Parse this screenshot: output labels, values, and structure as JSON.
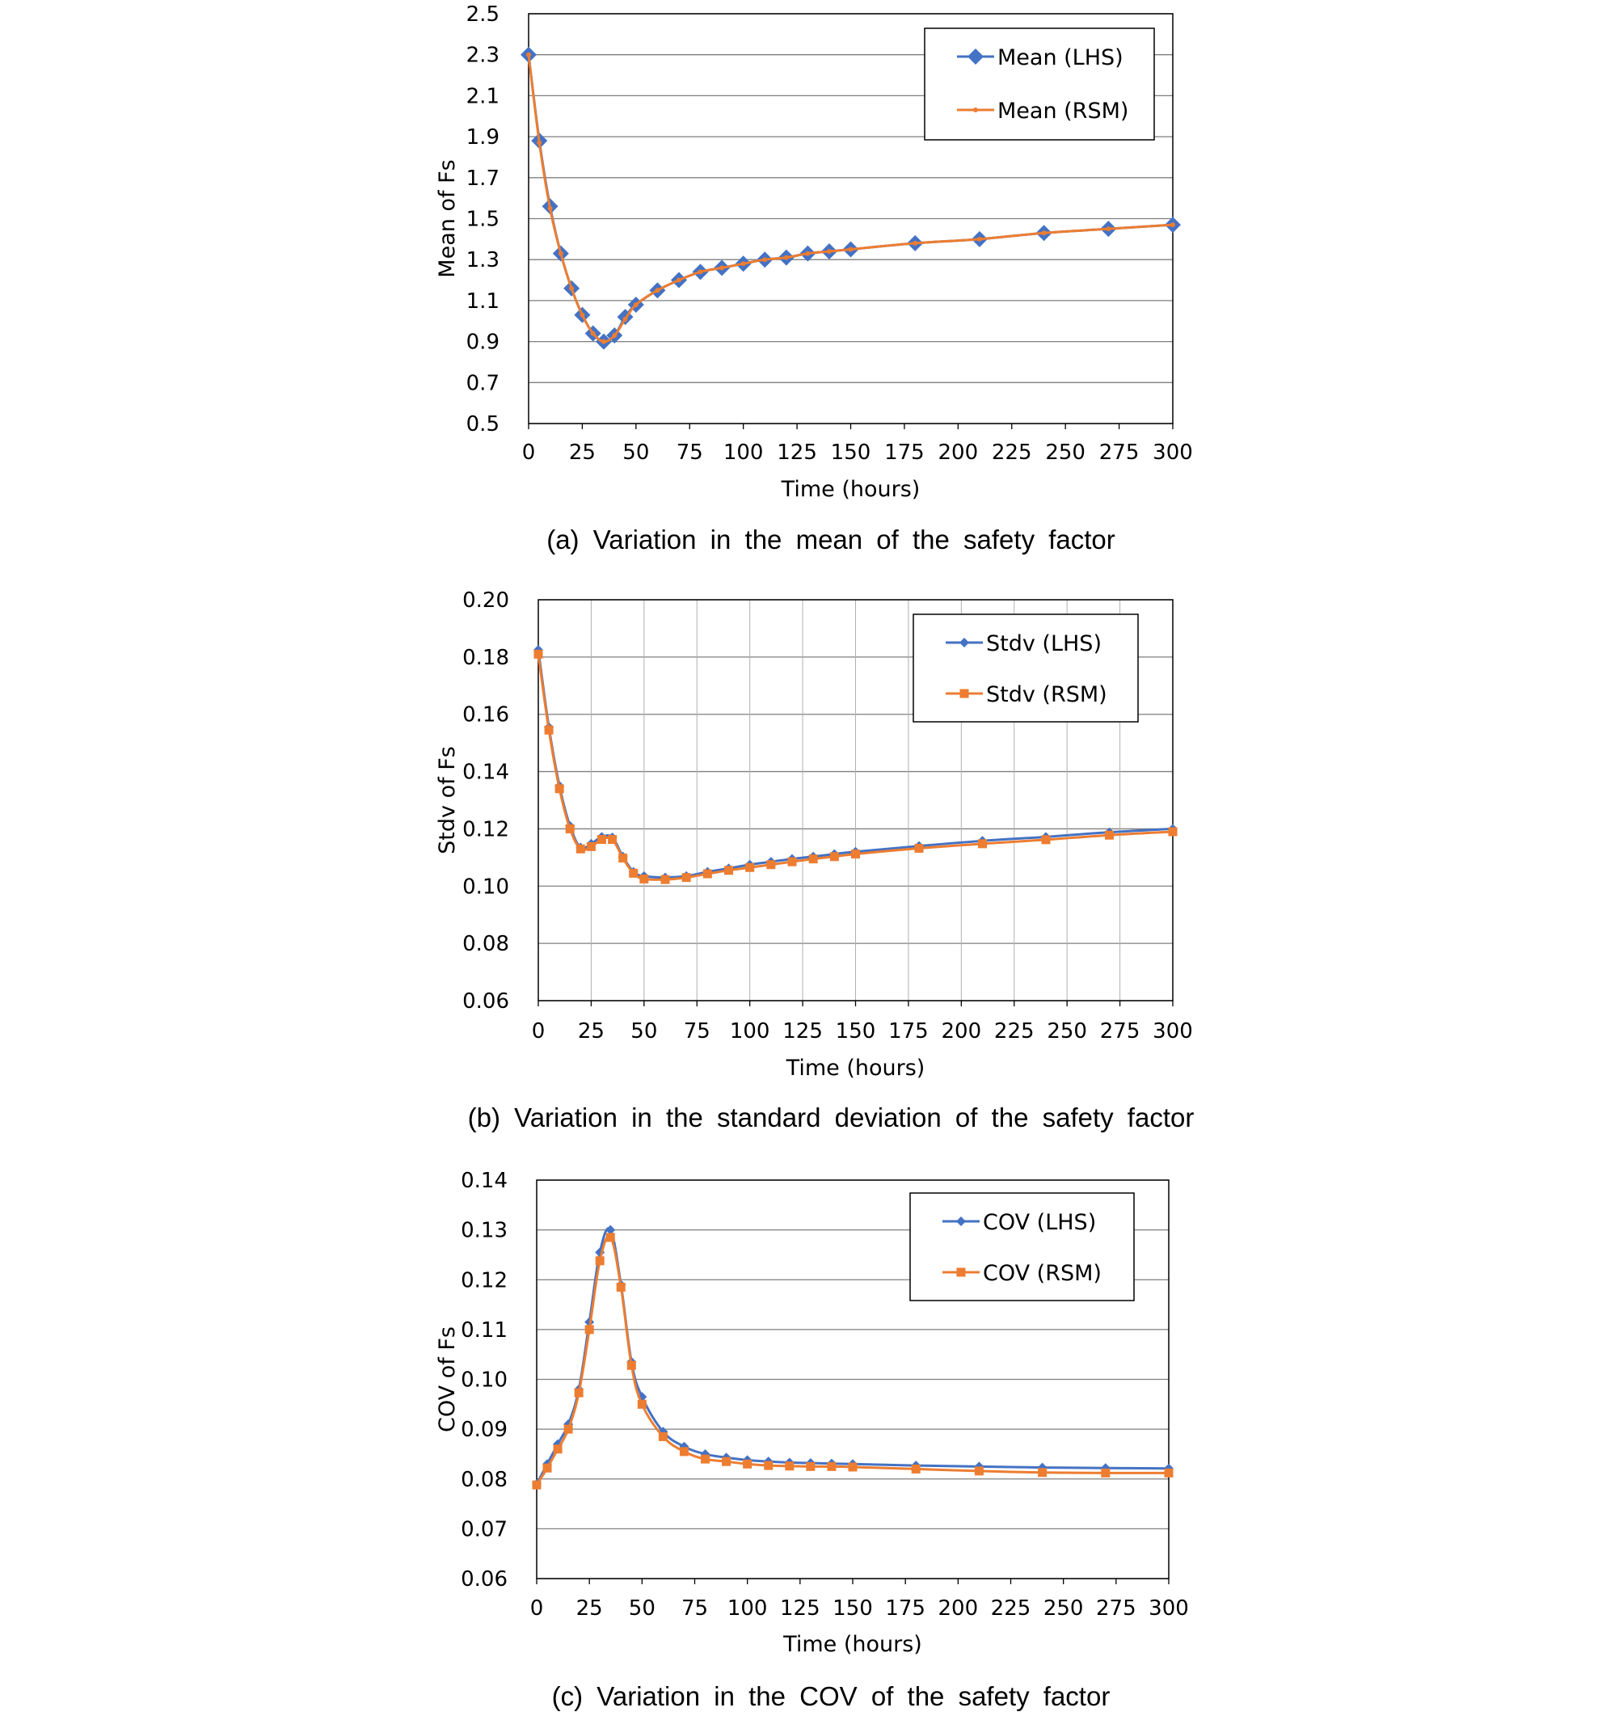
{
  "figure": {
    "colors": {
      "lhs": "#4472C4",
      "rsm": "#ED7D31",
      "grid": "#7f7f7f",
      "axis": "#000000"
    }
  },
  "chart_data": [
    {
      "type": "line",
      "caption": "(a) Variation in the mean of the safety factor",
      "xlabel": "Time (hours)",
      "ylabel": "Mean of Fs",
      "xlim": [
        0,
        300
      ],
      "ylim": [
        0.5,
        2.5
      ],
      "xticks": [
        0,
        25,
        50,
        75,
        100,
        125,
        150,
        175,
        200,
        225,
        250,
        275,
        300
      ],
      "yticks": [
        "0.5",
        "0.7",
        "0.9",
        "1.1",
        "1.3",
        "1.5",
        "1.7",
        "1.9",
        "2.1",
        "2.3",
        "2.5"
      ],
      "grid": "horizontal",
      "legend_position": "top-right",
      "series": [
        {
          "name": "Mean (LHS)",
          "marker": "diamond",
          "color": "#4472C4",
          "x": [
            0,
            5,
            10,
            15,
            20,
            25,
            30,
            35,
            40,
            45,
            50,
            60,
            70,
            80,
            90,
            100,
            110,
            120,
            130,
            140,
            150,
            180,
            210,
            240,
            270,
            300
          ],
          "y": [
            2.3,
            1.88,
            1.56,
            1.33,
            1.16,
            1.03,
            0.94,
            0.9,
            0.93,
            1.02,
            1.08,
            1.15,
            1.2,
            1.24,
            1.26,
            1.28,
            1.3,
            1.31,
            1.33,
            1.34,
            1.35,
            1.38,
            1.4,
            1.43,
            1.45,
            1.47
          ]
        },
        {
          "name": "Mean (RSM)",
          "marker": "small-dot",
          "color": "#ED7D31",
          "x": [
            0,
            5,
            10,
            15,
            20,
            25,
            30,
            35,
            40,
            45,
            50,
            60,
            70,
            80,
            90,
            100,
            110,
            120,
            130,
            140,
            150,
            180,
            210,
            240,
            270,
            300
          ],
          "y": [
            2.3,
            1.87,
            1.55,
            1.33,
            1.16,
            1.03,
            0.94,
            0.9,
            0.93,
            1.01,
            1.08,
            1.15,
            1.2,
            1.24,
            1.26,
            1.28,
            1.3,
            1.31,
            1.33,
            1.34,
            1.35,
            1.38,
            1.4,
            1.43,
            1.45,
            1.47
          ]
        }
      ]
    },
    {
      "type": "line",
      "caption": "(b) Variation in the standard deviation of the safety factor",
      "xlabel": "Time (hours)",
      "ylabel": "Stdv of Fs",
      "xlim": [
        0,
        300
      ],
      "ylim": [
        0.06,
        0.2
      ],
      "xticks": [
        0,
        25,
        50,
        75,
        100,
        125,
        150,
        175,
        200,
        225,
        250,
        275,
        300
      ],
      "yticks": [
        "0.06",
        "0.08",
        "0.10",
        "0.12",
        "0.14",
        "0.16",
        "0.18",
        "0.20"
      ],
      "grid": "both",
      "legend_position": "top-right",
      "series": [
        {
          "name": "Stdv (LHS)",
          "marker": "small-diamond",
          "color": "#4472C4",
          "x": [
            0,
            5,
            10,
            15,
            20,
            25,
            30,
            35,
            40,
            45,
            50,
            60,
            70,
            80,
            90,
            100,
            110,
            120,
            130,
            140,
            150,
            180,
            210,
            240,
            270,
            300
          ],
          "y": [
            0.1825,
            0.1555,
            0.135,
            0.121,
            0.1135,
            0.1148,
            0.1172,
            0.117,
            0.1103,
            0.105,
            0.1035,
            0.103,
            0.1035,
            0.105,
            0.1062,
            0.1075,
            0.1085,
            0.1095,
            0.1103,
            0.1112,
            0.112,
            0.114,
            0.1158,
            0.1172,
            0.1188,
            0.12
          ]
        },
        {
          "name": "Stdv (RSM)",
          "marker": "square",
          "color": "#ED7D31",
          "x": [
            0,
            5,
            10,
            15,
            20,
            25,
            30,
            35,
            40,
            45,
            50,
            60,
            70,
            80,
            90,
            100,
            110,
            120,
            130,
            140,
            150,
            180,
            210,
            240,
            270,
            300
          ],
          "y": [
            0.181,
            0.1545,
            0.134,
            0.12,
            0.113,
            0.1138,
            0.1163,
            0.1163,
            0.1098,
            0.1045,
            0.1025,
            0.1023,
            0.103,
            0.1043,
            0.1055,
            0.1065,
            0.1075,
            0.1085,
            0.1095,
            0.1103,
            0.1112,
            0.1132,
            0.1148,
            0.1162,
            0.1178,
            0.119
          ]
        }
      ]
    },
    {
      "type": "line",
      "caption": "(c) Variation in the COV of the safety factor",
      "xlabel": "Time (hours)",
      "ylabel": "COV of Fs",
      "xlim": [
        0,
        300
      ],
      "ylim": [
        0.06,
        0.14
      ],
      "xticks": [
        0,
        25,
        50,
        75,
        100,
        125,
        150,
        175,
        200,
        225,
        250,
        275,
        300
      ],
      "yticks": [
        "0.06",
        "0.07",
        "0.08",
        "0.09",
        "0.10",
        "0.11",
        "0.12",
        "0.13",
        "0.14"
      ],
      "grid": "horizontal",
      "legend_position": "top-right",
      "series": [
        {
          "name": "COV (LHS)",
          "marker": "small-diamond",
          "color": "#4472C4",
          "x": [
            0,
            5,
            10,
            15,
            20,
            25,
            30,
            35,
            40,
            45,
            50,
            60,
            70,
            80,
            90,
            100,
            110,
            120,
            130,
            140,
            150,
            180,
            210,
            240,
            270,
            300
          ],
          "y": [
            0.079,
            0.083,
            0.087,
            0.091,
            0.098,
            0.1115,
            0.1255,
            0.13,
            0.119,
            0.1035,
            0.0965,
            0.0895,
            0.0865,
            0.085,
            0.0843,
            0.0838,
            0.0835,
            0.0833,
            0.0832,
            0.0831,
            0.083,
            0.0827,
            0.0825,
            0.0823,
            0.0822,
            0.0821
          ]
        },
        {
          "name": "COV (RSM)",
          "marker": "square",
          "color": "#ED7D31",
          "x": [
            0,
            5,
            10,
            15,
            20,
            25,
            30,
            35,
            40,
            45,
            50,
            60,
            70,
            80,
            90,
            100,
            110,
            120,
            130,
            140,
            150,
            180,
            210,
            240,
            270,
            300
          ],
          "y": [
            0.0788,
            0.0822,
            0.086,
            0.09,
            0.0973,
            0.11,
            0.1238,
            0.1285,
            0.1185,
            0.1028,
            0.095,
            0.0885,
            0.0855,
            0.084,
            0.0835,
            0.083,
            0.0827,
            0.0826,
            0.0825,
            0.0825,
            0.0824,
            0.082,
            0.0816,
            0.0813,
            0.0812,
            0.0812
          ]
        }
      ]
    }
  ]
}
